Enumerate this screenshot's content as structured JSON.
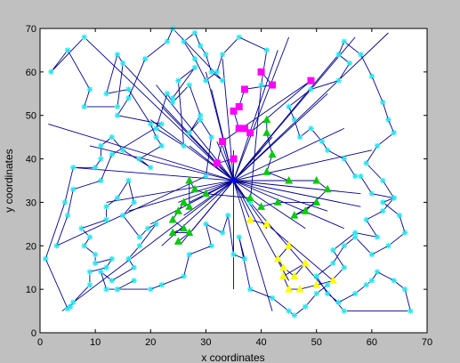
{
  "chart_data": {
    "type": "scatter",
    "title": "",
    "xlabel": "x coordinates",
    "ylabel": "y coordinates",
    "xlim": [
      0,
      70
    ],
    "ylim": [
      0,
      70
    ],
    "xticks": [
      "0",
      "10",
      "20",
      "30",
      "40",
      "50",
      "60",
      "70"
    ],
    "yticks": [
      "0",
      "10",
      "20",
      "30",
      "40",
      "50",
      "60",
      "70"
    ],
    "grid": false,
    "legend": "none",
    "colors": {
      "figure_bg": "#c0c0c0",
      "axes_bg": "#ffffff",
      "path": "#00008b",
      "center": "#0000ff",
      "cyan": "#29e5f0",
      "magenta": "#ff00ff",
      "green": "#00cc00",
      "yellow": "#ffff00"
    },
    "center": [
      35,
      35
    ],
    "rays": [
      [
        8,
        68
      ],
      [
        15,
        62
      ],
      [
        4,
        5
      ],
      [
        1.5,
        48
      ],
      [
        6,
        38
      ],
      [
        9,
        43
      ],
      [
        12,
        30
      ],
      [
        16,
        28
      ],
      [
        20,
        25
      ],
      [
        22,
        20
      ],
      [
        27,
        30
      ],
      [
        20,
        49
      ],
      [
        21,
        57
      ],
      [
        22,
        52
      ],
      [
        27,
        43
      ],
      [
        32,
        44
      ],
      [
        31,
        56
      ],
      [
        30,
        60
      ],
      [
        33,
        63
      ],
      [
        43,
        65
      ],
      [
        45,
        68
      ],
      [
        54,
        64
      ],
      [
        57,
        68
      ],
      [
        63,
        69
      ],
      [
        52,
        55
      ],
      [
        55,
        47
      ],
      [
        60,
        42
      ],
      [
        58,
        32
      ],
      [
        58,
        29
      ],
      [
        55,
        24
      ],
      [
        35,
        10
      ],
      [
        42,
        5
      ],
      [
        45,
        12
      ],
      [
        38,
        26
      ],
      [
        41,
        24
      ],
      [
        48,
        24
      ],
      [
        26,
        27
      ],
      [
        25,
        30
      ],
      [
        27.5,
        23.5
      ],
      [
        25.5,
        20.5
      ],
      [
        37,
        31
      ],
      [
        45,
        35
      ],
      [
        50,
        35
      ],
      [
        52,
        28
      ],
      [
        30,
        40
      ],
      [
        33,
        43
      ],
      [
        35,
        42
      ],
      [
        42,
        45
      ],
      [
        40,
        42
      ]
    ],
    "series": [
      {
        "marker": "asterisk",
        "color": "#29e5f0",
        "x": [
          8,
          2,
          5,
          9,
          8,
          14,
          15,
          14,
          12,
          16,
          20,
          21,
          22,
          18,
          20,
          15,
          13,
          11,
          11,
          10,
          6,
          4.5,
          1,
          5,
          5.5,
          6,
          9,
          9,
          12,
          13,
          10,
          10,
          8,
          9,
          7.5,
          12,
          12,
          14,
          16,
          17,
          15,
          18,
          19.5,
          21,
          18,
          16,
          17,
          13,
          11,
          12,
          14,
          17,
          14,
          20,
          22,
          26,
          27,
          31,
          30,
          33,
          34,
          35,
          37,
          36,
          38,
          42,
          45,
          46,
          48,
          50,
          52,
          55,
          53,
          57,
          61,
          59,
          62,
          64,
          60,
          58,
          57,
          55,
          52,
          51,
          49,
          47,
          46,
          45,
          49,
          54,
          56,
          54,
          55,
          58,
          60,
          62,
          63,
          64,
          61,
          59,
          62,
          64,
          62,
          65,
          66,
          63,
          60,
          57,
          55,
          53,
          50,
          52,
          54,
          57,
          59,
          60,
          61,
          64,
          66,
          67,
          55,
          38,
          40,
          41,
          36,
          33,
          32,
          30,
          28,
          26,
          28,
          29,
          30,
          31,
          33,
          24,
          23,
          19,
          16,
          14,
          22,
          13,
          11,
          6,
          5,
          3,
          30,
          31,
          29,
          27,
          29,
          27,
          24,
          23,
          21,
          26,
          25,
          28,
          24
        ],
        "y": [
          68,
          60,
          65,
          56,
          52,
          52,
          62,
          64,
          55,
          56,
          48,
          45,
          43,
          40,
          38,
          42,
          45,
          43,
          40,
          38,
          38,
          30,
          17,
          5.5,
          6,
          7,
          11,
          14,
          15,
          17,
          16,
          18,
          20,
          22,
          24,
          26,
          29,
          31,
          35,
          30,
          27,
          22,
          24,
          25,
          20,
          17,
          15,
          12,
          14,
          10,
          10,
          12,
          10,
          10,
          11,
          13,
          18,
          20,
          25,
          23,
          27,
          18,
          17,
          22,
          10,
          8,
          5,
          4,
          6,
          9,
          11,
          15,
          19,
          23,
          22,
          26,
          28,
          31,
          32,
          36,
          36,
          40,
          42,
          44,
          47,
          45,
          49,
          52,
          56,
          58,
          62,
          64,
          67,
          64,
          59,
          53,
          49,
          46,
          43,
          39,
          35,
          31,
          30,
          27,
          23,
          20,
          18,
          22,
          20,
          16,
          13,
          9,
          7,
          9,
          11,
          12,
          14,
          12,
          10,
          5,
          5,
          30,
          57,
          65,
          68,
          64,
          60,
          58,
          63,
          67,
          69,
          66,
          64,
          60,
          58,
          70,
          67,
          63,
          54,
          50,
          48,
          41,
          35,
          33,
          27,
          20,
          36,
          45,
          49,
          46,
          50,
          57,
          53,
          55,
          47,
          43,
          58,
          61,
          54
        ]
      },
      {
        "marker": "square",
        "color": "#ff00ff",
        "x": [
          40,
          42,
          37,
          36,
          35,
          36,
          37,
          38,
          49,
          33,
          32,
          35
        ],
        "y": [
          60,
          57,
          56,
          52,
          51,
          47,
          47,
          46,
          58,
          44,
          39,
          40
        ]
      },
      {
        "marker": "triangle",
        "color": "#00cc00",
        "x": [
          41,
          41,
          42,
          41,
          45,
          50,
          52,
          48,
          46,
          50,
          43,
          40,
          38,
          30,
          28,
          27,
          27,
          26,
          25,
          24,
          26,
          24,
          27,
          25
        ],
        "y": [
          49,
          46,
          41,
          37,
          35,
          35,
          33,
          28,
          27,
          30,
          30,
          29,
          31,
          32,
          33,
          35,
          29,
          30,
          28,
          26,
          24,
          23,
          23,
          21
        ]
      },
      {
        "marker": "triangle",
        "color": "#ffff00",
        "x": [
          45,
          43,
          44,
          46,
          48,
          46,
          48,
          44,
          45,
          47,
          50,
          53,
          41,
          38
        ],
        "y": [
          20,
          17,
          15,
          13,
          16,
          13,
          16,
          13,
          10,
          10,
          11,
          12,
          25,
          26
        ]
      }
    ]
  }
}
